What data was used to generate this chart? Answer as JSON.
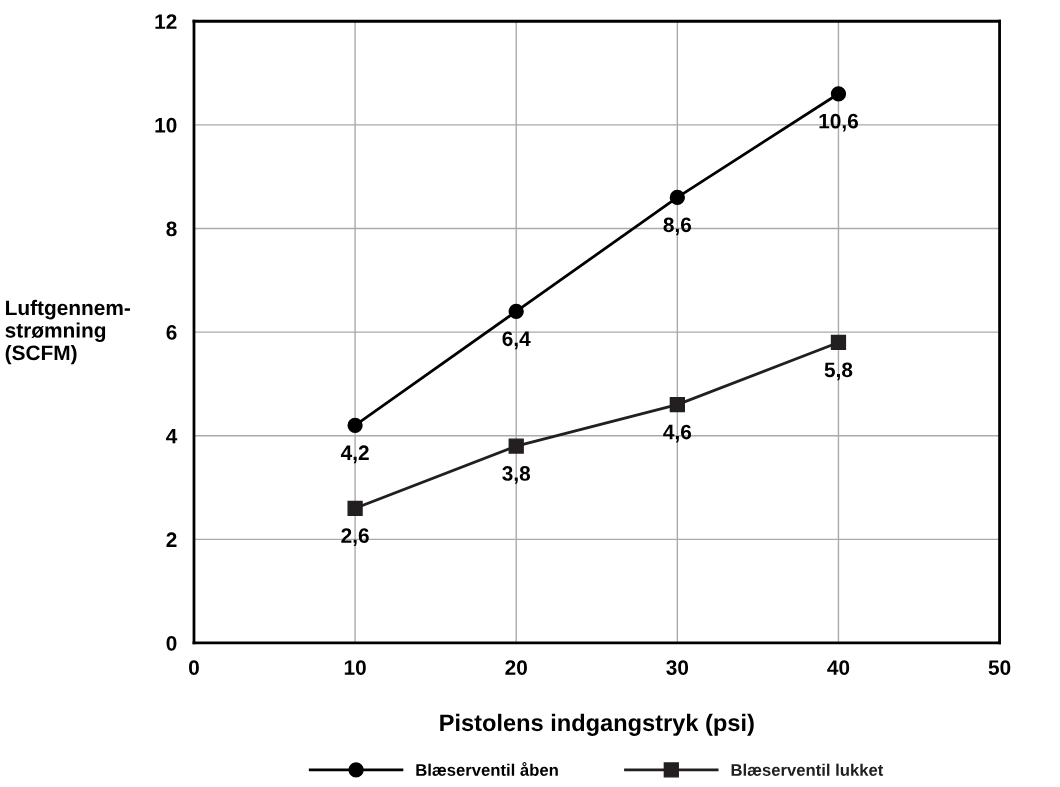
{
  "chart_data": {
    "type": "line",
    "xlabel": "Pistolens indgangstryk (psi)",
    "ylabel": "Luftgennem-\nstrømning\n(SCFM)",
    "x": [
      10,
      20,
      30,
      40
    ],
    "series": [
      {
        "name": "Blæserventil åben",
        "color": "#000000",
        "marker": "circle",
        "values": [
          4.2,
          6.4,
          8.6,
          10.6
        ],
        "value_labels": [
          "4,2",
          "6,4",
          "8,6",
          "10,6"
        ]
      },
      {
        "name": "Blæserventil lukket",
        "color": "#231f20",
        "marker": "square",
        "values": [
          2.6,
          3.8,
          4.6,
          5.8
        ],
        "value_labels": [
          "2,6",
          "3,8",
          "4,6",
          "5,8"
        ]
      }
    ],
    "xlim": [
      0,
      50
    ],
    "xticks": [
      0,
      10,
      20,
      30,
      40,
      50
    ],
    "ylim": [
      0,
      12
    ],
    "yticks": [
      0,
      2,
      4,
      6,
      8,
      10,
      12
    ],
    "grid": true,
    "legend": "bottom",
    "line_style": "solid"
  }
}
